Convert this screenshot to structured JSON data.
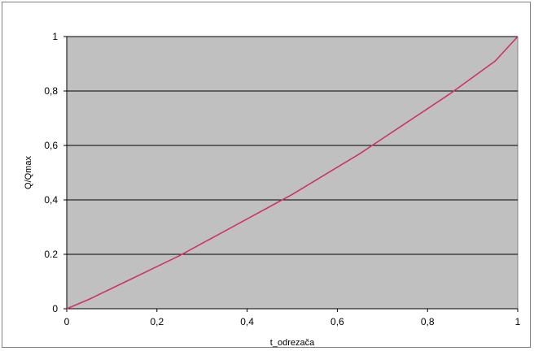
{
  "chart_data": {
    "type": "line",
    "title": "",
    "xlabel": "t_odrezača",
    "ylabel": "Q/Qmax",
    "xlim": [
      0,
      1
    ],
    "ylim": [
      0,
      1
    ],
    "grid": true,
    "legend": "none",
    "colors": {
      "plot_background": "#c0c0c0",
      "gridline": "#000000",
      "series": "#cc3366"
    },
    "x_tick_labels": [
      "0",
      "0,2",
      "0,4",
      "0,6",
      "0,8",
      "1"
    ],
    "y_tick_labels": [
      "0",
      "0.2",
      "0,4",
      "0,6",
      "0,8",
      "1"
    ],
    "series": [
      {
        "x": [
          0,
          0.05,
          0.1,
          0.15,
          0.2,
          0.25,
          0.3,
          0.35,
          0.4,
          0.45,
          0.5,
          0.55,
          0.6,
          0.65,
          0.7,
          0.75,
          0.8,
          0.85,
          0.9,
          0.95,
          1.0
        ],
        "values": [
          0,
          0.035,
          0.075,
          0.115,
          0.155,
          0.195,
          0.24,
          0.285,
          0.33,
          0.375,
          0.42,
          0.47,
          0.52,
          0.57,
          0.625,
          0.68,
          0.735,
          0.79,
          0.85,
          0.91,
          1.0
        ]
      }
    ]
  }
}
